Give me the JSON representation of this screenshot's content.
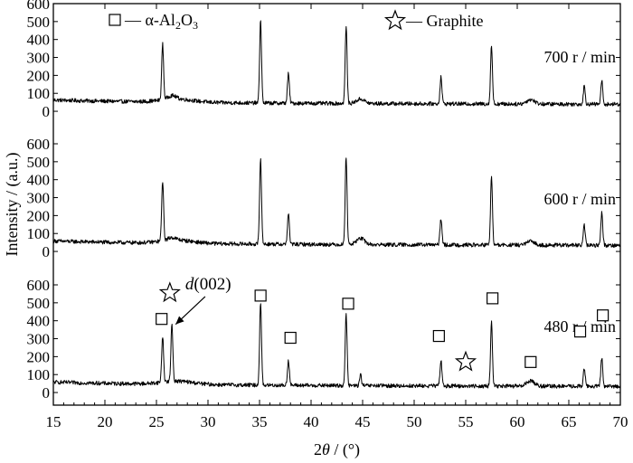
{
  "chart_data": {
    "type": "line",
    "xlabel_parts": [
      "2",
      "θ",
      " / (°)"
    ],
    "ylabel": "Intensity / (a.u.)",
    "xlim": [
      15,
      70
    ],
    "xticks": [
      15,
      20,
      25,
      30,
      35,
      40,
      45,
      50,
      55,
      60,
      65,
      70
    ],
    "yticks": [
      0,
      100,
      200,
      300,
      400,
      500,
      600
    ],
    "ylim_per_panel": [
      -40,
      600
    ],
    "grid": false,
    "legend": [
      {
        "marker": "square",
        "label": "— α-Al",
        "sub1": "2",
        "mid": "O",
        "sub2": "3"
      },
      {
        "marker": "star",
        "label": "— Graphite"
      }
    ],
    "series": [
      {
        "name": "700 r / min",
        "baseline": 45,
        "peaks": [
          {
            "x": 25.6,
            "height": 310
          },
          {
            "x": 26.5,
            "height": 20
          },
          {
            "x": 35.1,
            "height": 460
          },
          {
            "x": 37.8,
            "height": 165
          },
          {
            "x": 43.4,
            "height": 430
          },
          {
            "x": 44.8,
            "height": 25
          },
          {
            "x": 52.6,
            "height": 150
          },
          {
            "x": 57.5,
            "height": 325
          },
          {
            "x": 61.3,
            "height": 25
          },
          {
            "x": 66.5,
            "height": 100
          },
          {
            "x": 68.2,
            "height": 130
          }
        ]
      },
      {
        "name": "600 r / min",
        "baseline": 40,
        "peaks": [
          {
            "x": 25.6,
            "height": 335
          },
          {
            "x": 26.5,
            "height": 15
          },
          {
            "x": 35.1,
            "height": 480
          },
          {
            "x": 37.8,
            "height": 170
          },
          {
            "x": 43.4,
            "height": 490
          },
          {
            "x": 44.8,
            "height": 35
          },
          {
            "x": 52.6,
            "height": 150
          },
          {
            "x": 57.5,
            "height": 380
          },
          {
            "x": 61.3,
            "height": 20
          },
          {
            "x": 66.5,
            "height": 110
          },
          {
            "x": 68.2,
            "height": 185
          }
        ]
      },
      {
        "name": "480 r / min",
        "baseline": 40,
        "peaks": [
          {
            "x": 25.6,
            "height": 255
          },
          {
            "x": 26.5,
            "height": 320
          },
          {
            "x": 35.1,
            "height": 460
          },
          {
            "x": 37.8,
            "height": 140
          },
          {
            "x": 43.4,
            "height": 395
          },
          {
            "x": 44.8,
            "height": 60
          },
          {
            "x": 52.6,
            "height": 145
          },
          {
            "x": 57.5,
            "height": 355
          },
          {
            "x": 61.3,
            "height": 30
          },
          {
            "x": 66.5,
            "height": 100
          },
          {
            "x": 68.2,
            "height": 160
          }
        ]
      }
    ],
    "phase_markers": [
      {
        "type": "square",
        "x": 25.5,
        "y": 410
      },
      {
        "type": "square",
        "x": 35.1,
        "y": 540
      },
      {
        "type": "square",
        "x": 38.0,
        "y": 305
      },
      {
        "type": "square",
        "x": 43.6,
        "y": 495
      },
      {
        "type": "square",
        "x": 52.4,
        "y": 315
      },
      {
        "type": "square",
        "x": 57.6,
        "y": 525
      },
      {
        "type": "square",
        "x": 61.3,
        "y": 170
      },
      {
        "type": "square",
        "x": 66.1,
        "y": 340
      },
      {
        "type": "square",
        "x": 68.3,
        "y": 430
      },
      {
        "type": "star",
        "x": 55.0,
        "y": 170
      },
      {
        "type": "star",
        "x": 26.3,
        "y": 555
      }
    ],
    "annotations": [
      {
        "text_italic": "d",
        "text": "(002)",
        "x": 27.8,
        "y": 595,
        "arrow_to_x": 26.6,
        "arrow_to_y": 380
      }
    ]
  }
}
